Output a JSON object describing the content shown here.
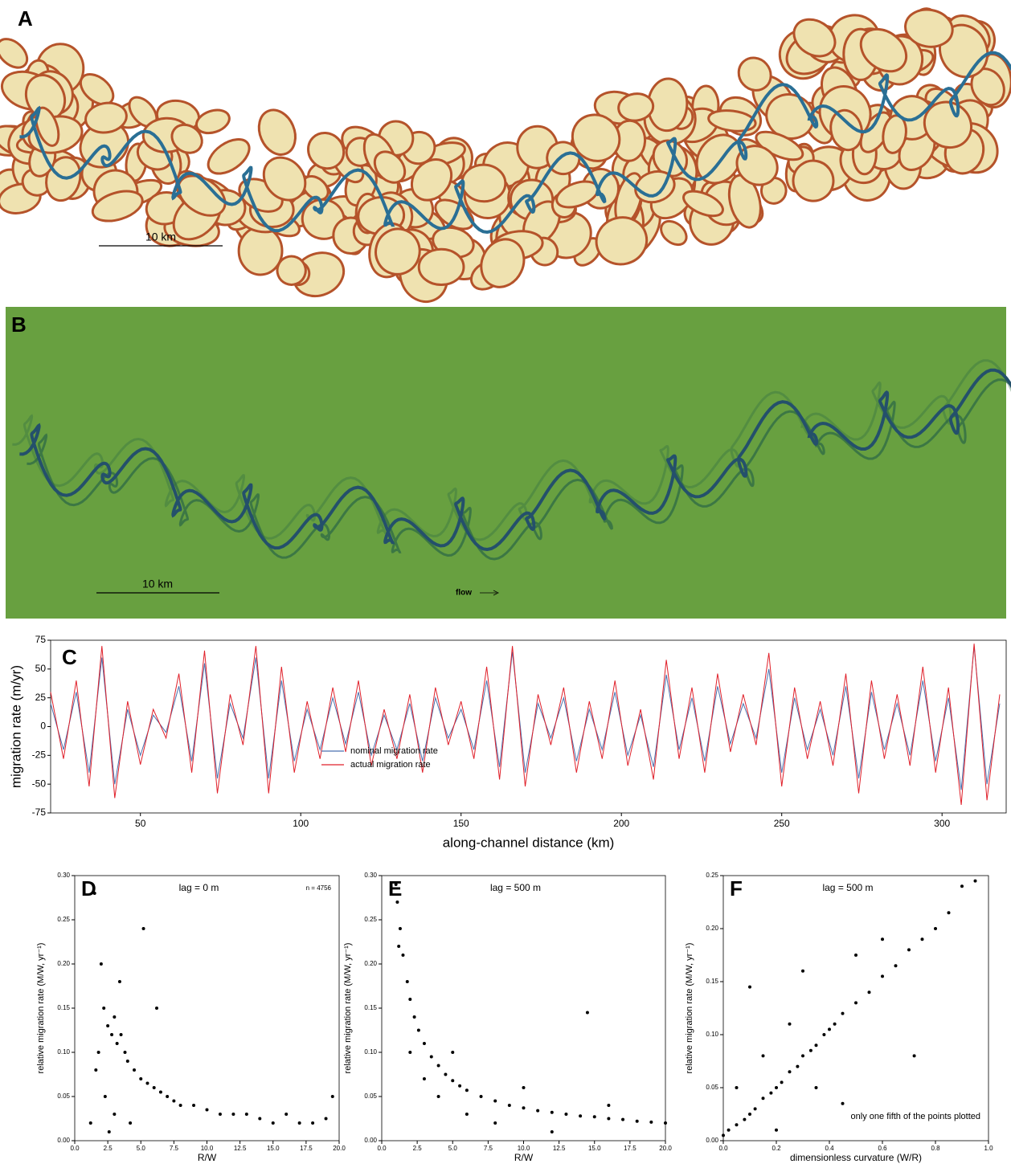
{
  "panels": {
    "a": {
      "label": "A",
      "scale": "10 km"
    },
    "b": {
      "label": "B",
      "scale": "10 km",
      "flow": "flow"
    }
  },
  "chart_data": [
    {
      "type": "line",
      "panel_label": "C",
      "x_label": "along-channel distance (km)",
      "y_label": "migration rate (m/yr)",
      "x": [
        22,
        26,
        30,
        34,
        38,
        42,
        46,
        50,
        54,
        58,
        62,
        66,
        70,
        74,
        78,
        82,
        86,
        90,
        94,
        98,
        102,
        106,
        110,
        114,
        118,
        122,
        126,
        130,
        134,
        138,
        142,
        146,
        150,
        154,
        158,
        162,
        166,
        170,
        174,
        178,
        182,
        186,
        190,
        194,
        198,
        202,
        206,
        210,
        214,
        218,
        222,
        226,
        230,
        234,
        238,
        242,
        246,
        250,
        254,
        258,
        262,
        266,
        270,
        274,
        278,
        282,
        286,
        290,
        294,
        298,
        302,
        306,
        310,
        314,
        318
      ],
      "series": [
        {
          "name": "nominal migration rate",
          "color": "#4a72b0",
          "values": [
            20,
            -20,
            30,
            -40,
            60,
            -50,
            15,
            -25,
            10,
            -5,
            35,
            -30,
            55,
            -45,
            20,
            -10,
            60,
            -45,
            40,
            -30,
            15,
            -20,
            25,
            -15,
            30,
            -25,
            10,
            -20,
            20,
            -30,
            25,
            -10,
            15,
            -20,
            40,
            -35,
            65,
            -40,
            20,
            -10,
            25,
            -30,
            15,
            -20,
            30,
            -25,
            10,
            -35,
            45,
            -20,
            25,
            -30,
            35,
            -15,
            20,
            -10,
            50,
            -40,
            25,
            -20,
            15,
            -25,
            35,
            -45,
            30,
            -20,
            20,
            -25,
            40,
            -30,
            25,
            -55,
            70,
            -50,
            20
          ]
        },
        {
          "name": "actual migration rate",
          "color": "#e0202a",
          "values": [
            30,
            -28,
            40,
            -52,
            70,
            -62,
            22,
            -33,
            15,
            -10,
            46,
            -40,
            66,
            -58,
            28,
            -16,
            70,
            -58,
            52,
            -40,
            22,
            -28,
            34,
            -22,
            40,
            -34,
            15,
            -28,
            28,
            -40,
            34,
            -16,
            22,
            -28,
            52,
            -46,
            70,
            -52,
            28,
            -16,
            34,
            -40,
            22,
            -28,
            40,
            -34,
            15,
            -46,
            58,
            -28,
            34,
            -40,
            46,
            -22,
            28,
            -16,
            64,
            -52,
            34,
            -28,
            22,
            -34,
            46,
            -58,
            40,
            -28,
            28,
            -34,
            52,
            -40,
            34,
            -68,
            72,
            -64,
            28
          ]
        }
      ],
      "xlim": [
        22,
        320
      ],
      "xticks": [
        50,
        100,
        150,
        200,
        250,
        300
      ],
      "ylim": [
        -75,
        75
      ],
      "yticks": [
        -75,
        -50,
        -25,
        0,
        25,
        50,
        75
      ]
    },
    {
      "type": "scatter",
      "panel_label": "D",
      "title": "lag = 0 m",
      "annotation": "n = 4756",
      "x_label": "R/W",
      "y_label": "relative migration rate (M/W, yr⁻¹)",
      "color": "#000000",
      "x": [
        1.5,
        2,
        2.2,
        2.5,
        2.8,
        3,
        3.2,
        3.5,
        3.8,
        4,
        4.5,
        5,
        5.5,
        6,
        6.5,
        7,
        7.5,
        8,
        9,
        10,
        11,
        12,
        13,
        14,
        15,
        16,
        17,
        18,
        19,
        19.5,
        1.2,
        1.8,
        2.3,
        3,
        4.2,
        5.2,
        2.6,
        3.4,
        1.6,
        6.2
      ],
      "values": [
        0.28,
        0.2,
        0.15,
        0.13,
        0.12,
        0.14,
        0.11,
        0.12,
        0.1,
        0.09,
        0.08,
        0.07,
        0.065,
        0.06,
        0.055,
        0.05,
        0.045,
        0.04,
        0.04,
        0.035,
        0.03,
        0.03,
        0.03,
        0.025,
        0.02,
        0.03,
        0.02,
        0.02,
        0.025,
        0.05,
        0.02,
        0.1,
        0.05,
        0.03,
        0.02,
        0.24,
        0.01,
        0.18,
        0.08,
        0.15
      ],
      "xlim": [
        0,
        20
      ],
      "xticks": [
        {
          "value": 0,
          "label": "0.0"
        },
        {
          "value": 2.5,
          "label": "2.5"
        },
        {
          "value": 5,
          "label": "5.0"
        },
        {
          "value": 7.5,
          "label": "7.5"
        },
        {
          "value": 10,
          "label": "10.0"
        },
        {
          "value": 12.5,
          "label": "12.5"
        },
        {
          "value": 15,
          "label": "15.0"
        },
        {
          "value": 17.5,
          "label": "17.5"
        },
        {
          "value": 20,
          "label": "20.0"
        }
      ],
      "ylim": [
        0,
        0.3
      ],
      "yticks": [
        {
          "value": 0,
          "label": "0.00"
        },
        {
          "value": 0.05,
          "label": "0.05"
        },
        {
          "value": 0.1,
          "label": "0.10"
        },
        {
          "value": 0.15,
          "label": "0.15"
        },
        {
          "value": 0.2,
          "label": "0.20"
        },
        {
          "value": 0.25,
          "label": "0.25"
        },
        {
          "value": 0.3,
          "label": "0.30"
        }
      ]
    },
    {
      "type": "scatter",
      "panel_label": "E",
      "title": "lag = 500 m",
      "x_label": "R/W",
      "y_label": "relative migration rate (M/W, yr⁻¹)",
      "color": "#000000",
      "x": [
        1,
        1.1,
        1.3,
        1.5,
        1.8,
        2,
        2.3,
        2.6,
        3,
        3.5,
        4,
        4.5,
        5,
        5.5,
        6,
        7,
        8,
        9,
        10,
        11,
        12,
        13,
        14,
        15,
        16,
        17,
        18,
        19,
        20,
        3,
        5,
        8,
        14.5,
        2,
        4,
        6,
        1.2,
        10,
        12,
        16
      ],
      "values": [
        0.29,
        0.27,
        0.24,
        0.21,
        0.18,
        0.16,
        0.14,
        0.125,
        0.11,
        0.095,
        0.085,
        0.075,
        0.068,
        0.062,
        0.057,
        0.05,
        0.045,
        0.04,
        0.037,
        0.034,
        0.032,
        0.03,
        0.028,
        0.027,
        0.025,
        0.024,
        0.022,
        0.021,
        0.02,
        0.07,
        0.1,
        0.02,
        0.145,
        0.1,
        0.05,
        0.03,
        0.22,
        0.06,
        0.01,
        0.04
      ],
      "xlim": [
        0,
        20
      ],
      "xticks": [
        {
          "value": 0,
          "label": "0.0"
        },
        {
          "value": 2.5,
          "label": "2.5"
        },
        {
          "value": 5,
          "label": "5.0"
        },
        {
          "value": 7.5,
          "label": "7.5"
        },
        {
          "value": 10,
          "label": "10.0"
        },
        {
          "value": 12.5,
          "label": "12.5"
        },
        {
          "value": 15,
          "label": "15.0"
        },
        {
          "value": 17.5,
          "label": "17.5"
        },
        {
          "value": 20,
          "label": "20.0"
        }
      ],
      "ylim": [
        0,
        0.3
      ],
      "yticks": [
        {
          "value": 0,
          "label": "0.00"
        },
        {
          "value": 0.05,
          "label": "0.05"
        },
        {
          "value": 0.1,
          "label": "0.10"
        },
        {
          "value": 0.15,
          "label": "0.15"
        },
        {
          "value": 0.2,
          "label": "0.20"
        },
        {
          "value": 0.25,
          "label": "0.25"
        },
        {
          "value": 0.3,
          "label": "0.30"
        }
      ]
    },
    {
      "type": "scatter",
      "panel_label": "F",
      "title": "lag = 500 m",
      "annotation": "only one fifth of the points plotted",
      "x_label": "dimensionless curvature (W/R)",
      "y_label": "relative migration rate (M/W, yr⁻¹)",
      "color": "#000000",
      "x": [
        0,
        0.02,
        0.05,
        0.08,
        0.1,
        0.12,
        0.15,
        0.18,
        0.2,
        0.22,
        0.25,
        0.28,
        0.3,
        0.33,
        0.35,
        0.38,
        0.4,
        0.42,
        0.45,
        0.5,
        0.55,
        0.6,
        0.65,
        0.7,
        0.75,
        0.8,
        0.85,
        0.9,
        0.95,
        0.1,
        0.2,
        0.3,
        0.45,
        0.72,
        0.6,
        0.05,
        0.35,
        0.5,
        0.15,
        0.25
      ],
      "values": [
        0.005,
        0.01,
        0.015,
        0.02,
        0.025,
        0.03,
        0.04,
        0.045,
        0.05,
        0.055,
        0.065,
        0.07,
        0.08,
        0.085,
        0.09,
        0.1,
        0.105,
        0.11,
        0.12,
        0.13,
        0.14,
        0.155,
        0.165,
        0.18,
        0.19,
        0.2,
        0.215,
        0.24,
        0.245,
        0.145,
        0.01,
        0.16,
        0.035,
        0.08,
        0.19,
        0.05,
        0.05,
        0.175,
        0.08,
        0.11
      ],
      "xlim": [
        0,
        1
      ],
      "xticks": [
        {
          "value": 0,
          "label": "0.0"
        },
        {
          "value": 0.2,
          "label": "0.2"
        },
        {
          "value": 0.4,
          "label": "0.4"
        },
        {
          "value": 0.6,
          "label": "0.6"
        },
        {
          "value": 0.8,
          "label": "0.8"
        },
        {
          "value": 1,
          "label": "1.0"
        }
      ],
      "ylim": [
        0,
        0.25
      ],
      "yticks": [
        {
          "value": 0,
          "label": "0.00"
        },
        {
          "value": 0.05,
          "label": "0.05"
        },
        {
          "value": 0.1,
          "label": "0.10"
        },
        {
          "value": 0.15,
          "label": "0.15"
        },
        {
          "value": 0.2,
          "label": "0.20"
        },
        {
          "value": 0.25,
          "label": "0.25"
        }
      ]
    }
  ]
}
